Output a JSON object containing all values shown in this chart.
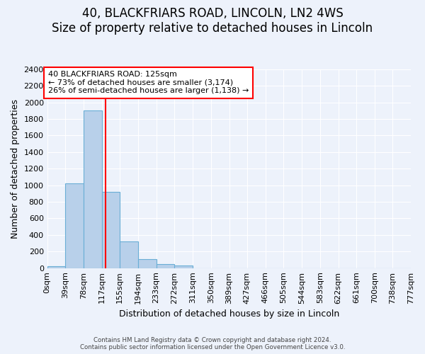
{
  "title": "40, BLACKFRIARS ROAD, LINCOLN, LN2 4WS",
  "subtitle": "Size of property relative to detached houses in Lincoln",
  "xlabel": "Distribution of detached houses by size in Lincoln",
  "ylabel": "Number of detached properties",
  "bin_edges": [
    0,
    39,
    78,
    117,
    155,
    194,
    233,
    272,
    311,
    350,
    389,
    427,
    466,
    505,
    544,
    583,
    622,
    661,
    700,
    738,
    777
  ],
  "bin_labels": [
    "0sqm",
    "39sqm",
    "78sqm",
    "117sqm",
    "155sqm",
    "194sqm",
    "233sqm",
    "272sqm",
    "311sqm",
    "350sqm",
    "389sqm",
    "427sqm",
    "466sqm",
    "505sqm",
    "544sqm",
    "583sqm",
    "622sqm",
    "661sqm",
    "700sqm",
    "738sqm",
    "777sqm"
  ],
  "bar_heights": [
    20,
    1025,
    1900,
    920,
    320,
    105,
    50,
    30,
    0,
    0,
    0,
    0,
    0,
    0,
    0,
    0,
    0,
    0,
    0,
    0
  ],
  "bar_color": "#b8d0ea",
  "bar_edge_color": "#6aaed6",
  "vline_x": 125,
  "vline_color": "red",
  "ylim": [
    0,
    2400
  ],
  "annotation_title": "40 BLACKFRIARS ROAD: 125sqm",
  "annotation_line1": "← 73% of detached houses are smaller (3,174)",
  "annotation_line2": "26% of semi-detached houses are larger (1,138) →",
  "annotation_box_facecolor": "#ffffff",
  "annotation_box_edge_color": "red",
  "footer_line1": "Contains HM Land Registry data © Crown copyright and database right 2024.",
  "footer_line2": "Contains public sector information licensed under the Open Government Licence v3.0.",
  "background_color": "#edf2fb",
  "grid_color": "#ffffff",
  "title_fontsize": 12,
  "subtitle_fontsize": 10,
  "yticks": [
    0,
    200,
    400,
    600,
    800,
    1000,
    1200,
    1400,
    1600,
    1800,
    2000,
    2200,
    2400
  ]
}
